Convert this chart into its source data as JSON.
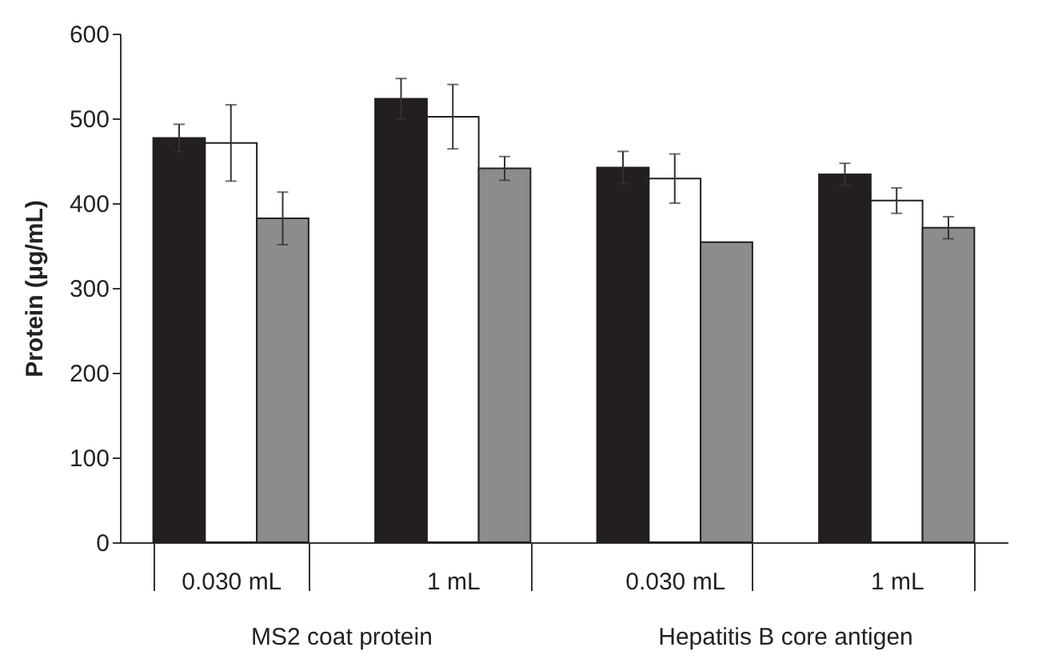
{
  "chart_data": {
    "type": "bar",
    "ylabel": "Protein (μg/mL)",
    "categories": [
      "0.030 mL",
      "1 mL",
      "0.030 mL",
      "1 mL"
    ],
    "series": [
      {
        "color": "#231f20",
        "values": [
          477,
          523,
          442,
          434
        ],
        "errors": [
          16,
          24,
          19,
          13
        ]
      },
      {
        "color": "#ffffff",
        "values": [
          471,
          502,
          429,
          403
        ],
        "errors": [
          45,
          38,
          29,
          15
        ]
      },
      {
        "color": "#8c8c8c",
        "values": [
          382,
          441,
          354,
          371
        ],
        "errors": [
          31,
          14,
          null,
          13
        ]
      }
    ],
    "annotations": [
      "MS2 coat protein",
      "Hepatitis B core antigen"
    ],
    "ylim": [
      0,
      600
    ],
    "yticks": [
      0,
      100,
      200,
      300,
      400,
      500,
      600
    ],
    "grid": false,
    "legend": false
  }
}
